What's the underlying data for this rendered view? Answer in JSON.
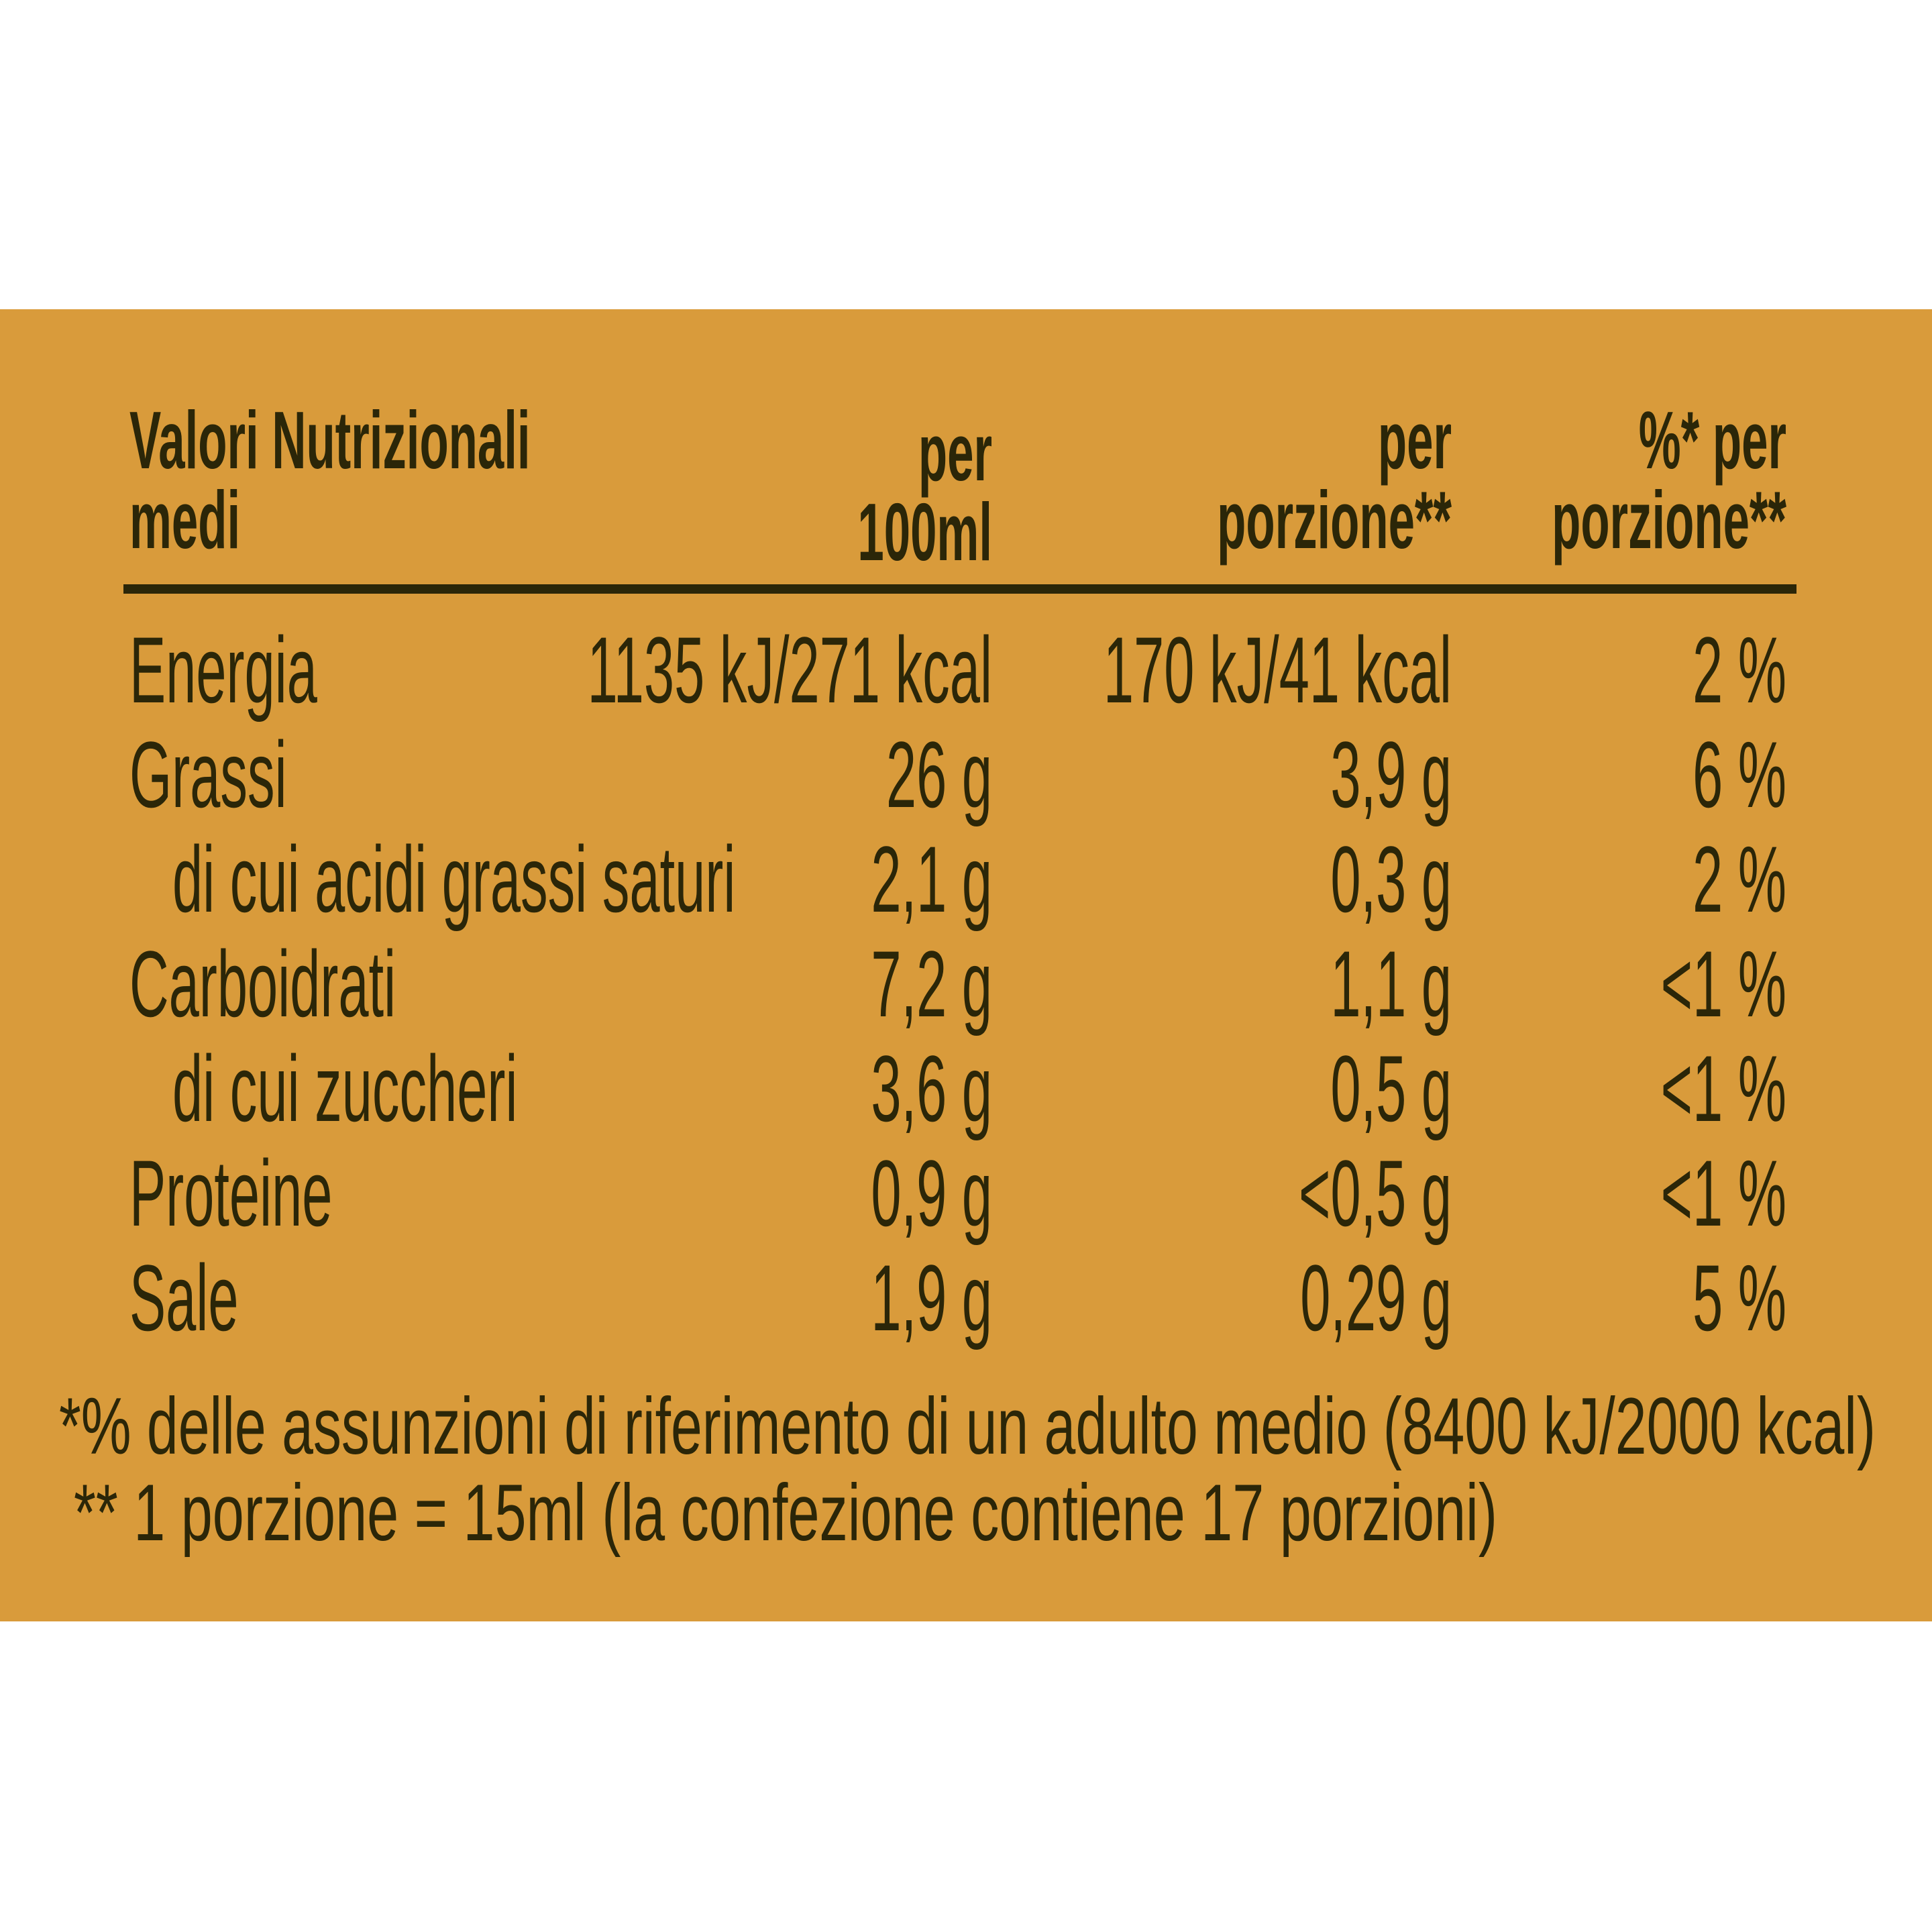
{
  "header": {
    "title_lines": [
      "Valori Nutrizionali",
      "medi"
    ],
    "columns": [
      [
        "per",
        "100ml"
      ],
      [
        "per",
        "porzione**"
      ],
      [
        "%* per",
        "porzione**"
      ]
    ]
  },
  "rows": [
    {
      "label": "Energia",
      "per_100ml": "1135 kJ/271 kcal",
      "per_portion": "170 kJ/41 kcal",
      "percent": "2 %"
    },
    {
      "label": "Grassi",
      "per_100ml": "26 g",
      "per_portion": "3,9 g",
      "percent": "6 %"
    },
    {
      "label": "di cui acidi grassi saturi",
      "per_100ml": "2,1 g",
      "per_portion": "0,3 g",
      "percent": "2 %"
    },
    {
      "label": "Carboidrati",
      "per_100ml": "7,2 g",
      "per_portion": "1,1 g",
      "percent": "<1 %"
    },
    {
      "label": "di cui zuccheri",
      "per_100ml": "3,6 g",
      "per_portion": "0,5 g",
      "percent": "<1 %"
    },
    {
      "label": "Proteine",
      "per_100ml": "0,9 g",
      "per_portion": "<0,5 g",
      "percent": "<1 %"
    },
    {
      "label": "Sale",
      "per_100ml": "1,9 g",
      "per_portion": "0,29 g",
      "percent": "5 %"
    }
  ],
  "footnotes": [
    "*% delle assunzioni di riferimento di un adulto medio (8400 kJ/2000 kcal)",
    "** 1 porzione = 15ml (la confezione contiene 17 porzioni)"
  ]
}
